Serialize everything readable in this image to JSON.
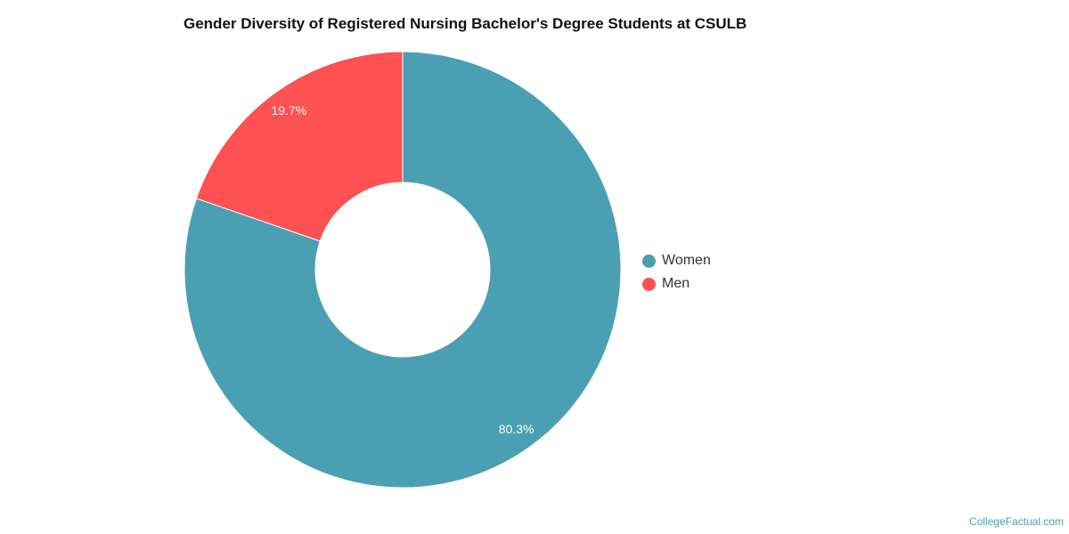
{
  "chart_data": {
    "type": "pie",
    "variant": "donut",
    "title": "Gender Diversity of Registered Nursing Bachelor's Degree Students at CSULB",
    "categories": [
      "Women",
      "Men"
    ],
    "values": [
      80.3,
      19.7
    ],
    "data_labels": [
      "80.3%",
      "19.7%"
    ],
    "colors": [
      "#4aa0b2",
      "#fd5153"
    ],
    "legend": {
      "placement": "right",
      "items": [
        {
          "label": "Women",
          "color": "#4aa0b2"
        },
        {
          "label": "Men",
          "color": "#fd5153"
        }
      ]
    }
  },
  "credit": "CollegeFactual.com"
}
